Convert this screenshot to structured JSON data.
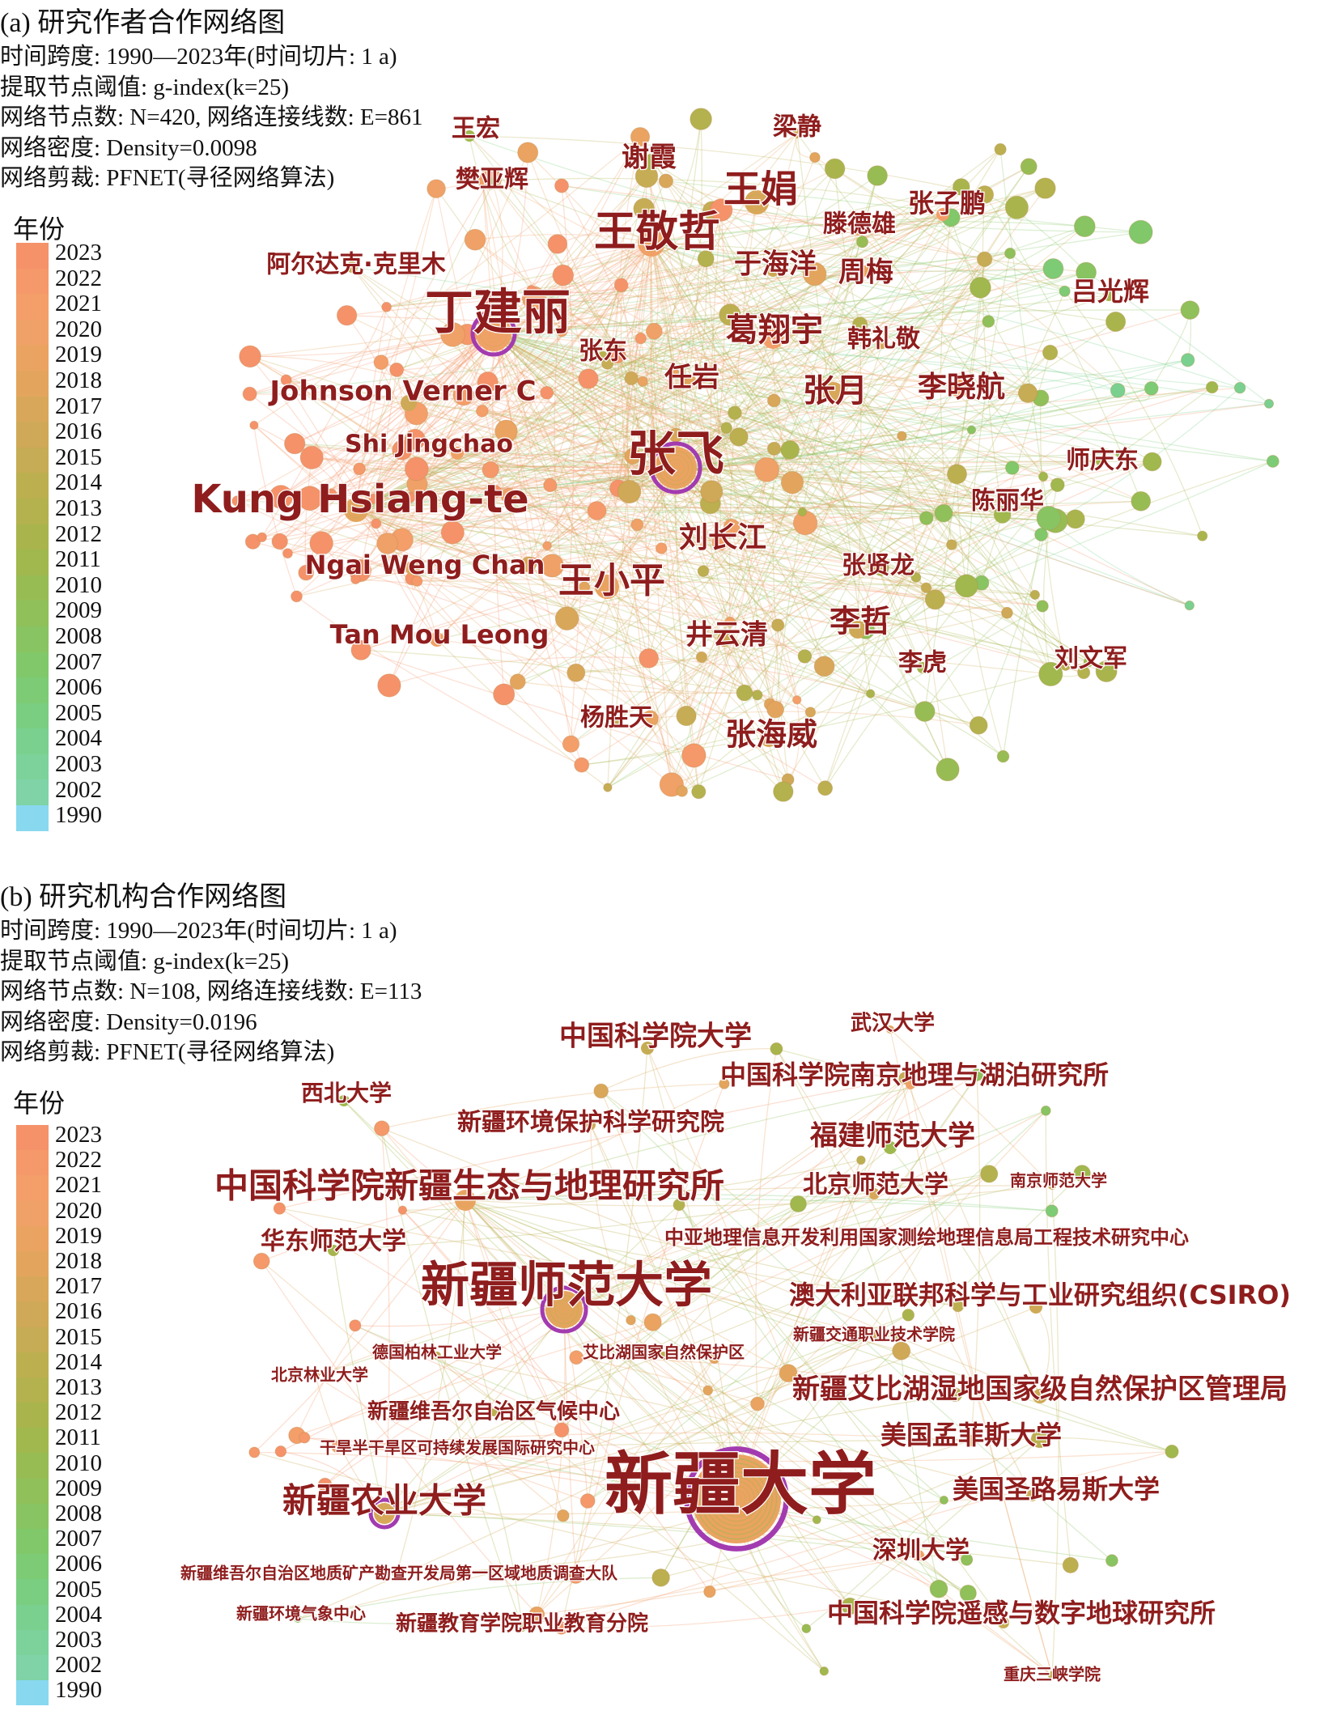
{
  "colors": {
    "label": "#8f1d1d",
    "burst_ring": "#a33bb0",
    "legend_gradient": [
      "#f5926a",
      "#f4a06a",
      "#e6a45e",
      "#cfa957",
      "#b9b04f",
      "#a3b74b",
      "#8fc05a",
      "#7ec96c",
      "#79d08a",
      "#7fd3a6",
      "#88d8f0"
    ]
  },
  "panels": [
    {
      "id": "a",
      "title": "(a) 研究作者合作网络图",
      "meta": [
        "时间跨度: 1990—2023年(时间切片: 1 a)",
        "提取节点阈值: g-index(k=25)",
        "网络节点数: N=420, 网络连接线数: E=861",
        "网络密度: Density=0.0098",
        "网络剪裁: PFNET(寻径网络算法)"
      ],
      "legend_title": "年份",
      "legend_years": [
        "2023",
        "2022",
        "2021",
        "2020",
        "2019",
        "2018",
        "2017",
        "2016",
        "2015",
        "2014",
        "2013",
        "2012",
        "2011",
        "2010",
        "2009",
        "2008",
        "2007",
        "2006",
        "2005",
        "2004",
        "2003",
        "2002",
        "1990"
      ],
      "labeled_nodes": [
        {
          "label": "张飞",
          "year": 2019,
          "size": 52,
          "burst": true
        },
        {
          "label": "丁建丽",
          "year": 2020,
          "size": 44,
          "burst": true
        },
        {
          "label": "Kung Hsiang-te",
          "year": 2018,
          "size": 30,
          "burst": false
        },
        {
          "label": "王敬哲",
          "year": 2020,
          "size": 34,
          "burst": false
        },
        {
          "label": "王娟",
          "year": 2017,
          "size": 30,
          "burst": false
        },
        {
          "label": "王小平",
          "year": 2019,
          "size": 30,
          "burst": false
        },
        {
          "label": "葛翔宇",
          "year": 2021,
          "size": 26,
          "burst": false
        },
        {
          "label": "张月",
          "year": 2017,
          "size": 26,
          "burst": false
        },
        {
          "label": "李晓航",
          "year": 2020,
          "size": 22,
          "burst": false
        },
        {
          "label": "Johnson Verner C",
          "year": 2016,
          "size": 20,
          "burst": false
        },
        {
          "label": "Ngai Weng Chan",
          "year": 2018,
          "size": 18,
          "burst": false
        },
        {
          "label": "Tan Mou Leong",
          "year": 2020,
          "size": 18,
          "burst": false
        },
        {
          "label": "Shi Jingchao",
          "year": 2020,
          "size": 16,
          "burst": false
        },
        {
          "label": "谢霞",
          "year": 2012,
          "size": 20,
          "burst": false
        },
        {
          "label": "刘长江",
          "year": 2021,
          "size": 20,
          "burst": false
        },
        {
          "label": "李哲",
          "year": 2016,
          "size": 22,
          "burst": false
        },
        {
          "label": "张海威",
          "year": 2017,
          "size": 22,
          "burst": false
        },
        {
          "label": "井云清",
          "year": 2016,
          "size": 18,
          "burst": false
        },
        {
          "label": "任岩",
          "year": 2018,
          "size": 16,
          "burst": false
        },
        {
          "label": "于海洋",
          "year": 2016,
          "size": 14,
          "burst": false
        },
        {
          "label": "周梅",
          "year": 2019,
          "size": 14,
          "burst": false
        },
        {
          "label": "张子鹏",
          "year": 2021,
          "size": 16,
          "burst": false
        },
        {
          "label": "梁静",
          "year": 2016,
          "size": 12,
          "burst": false
        },
        {
          "label": "滕德雄",
          "year": 2019,
          "size": 12,
          "burst": false
        },
        {
          "label": "吕光辉",
          "year": 2012,
          "size": 14,
          "burst": false
        },
        {
          "label": "阿尔达克·克里木",
          "year": 2015,
          "size": 14,
          "burst": false
        },
        {
          "label": "王宏",
          "year": 2011,
          "size": 14,
          "burst": false
        },
        {
          "label": "樊亚辉",
          "year": 2012,
          "size": 12,
          "burst": false
        },
        {
          "label": "张东",
          "year": 2014,
          "size": 12,
          "burst": false
        },
        {
          "label": "韩礼敬",
          "year": 2017,
          "size": 12,
          "burst": false
        },
        {
          "label": "师庆东",
          "year": 2012,
          "size": 12,
          "burst": false
        },
        {
          "label": "陈丽华",
          "year": 2015,
          "size": 12,
          "burst": false
        },
        {
          "label": "张贤龙",
          "year": 2016,
          "size": 12,
          "burst": false
        },
        {
          "label": "李虎",
          "year": 2012,
          "size": 14,
          "burst": false
        },
        {
          "label": "刘文军",
          "year": 2011,
          "size": 12,
          "burst": false
        },
        {
          "label": "杨胜天",
          "year": 2015,
          "size": 12,
          "burst": false
        }
      ]
    },
    {
      "id": "b",
      "title": "(b) 研究机构合作网络图",
      "meta": [
        "时间跨度: 1990—2023年(时间切片: 1 a)",
        "提取节点阈值: g-index(k=25)",
        "网络节点数: N=108, 网络连接线数: E=113",
        "网络密度: Density=0.0196",
        "网络剪裁: PFNET(寻径网络算法)"
      ],
      "legend_title": "年份",
      "legend_years": [
        "2023",
        "2022",
        "2021",
        "2020",
        "2019",
        "2018",
        "2017",
        "2016",
        "2015",
        "2014",
        "2013",
        "2012",
        "2011",
        "2010",
        "2009",
        "2008",
        "2007",
        "2006",
        "2005",
        "2004",
        "2003",
        "2002",
        "1990"
      ],
      "labeled_nodes": [
        {
          "label": "新疆大学",
          "year": 2019,
          "size": 110,
          "burst": true
        },
        {
          "label": "新疆师范大学",
          "year": 2018,
          "size": 46,
          "burst": true
        },
        {
          "label": "新疆农业大学",
          "year": 2017,
          "size": 26,
          "burst": true
        },
        {
          "label": "中国科学院新疆生态与地理研究所",
          "year": 2019,
          "size": 26,
          "burst": false
        },
        {
          "label": "中国科学院大学",
          "year": 2015,
          "size": 16,
          "burst": false
        },
        {
          "label": "中国科学院南京地理与湖泊研究所",
          "year": 2020,
          "size": 12,
          "burst": false
        },
        {
          "label": "新疆环境保护科学研究院",
          "year": 2016,
          "size": 12,
          "burst": false
        },
        {
          "label": "福建师范大学",
          "year": 2011,
          "size": 16,
          "burst": false
        },
        {
          "label": "北京师范大学",
          "year": 2017,
          "size": 14,
          "burst": false
        },
        {
          "label": "南京师范大学",
          "year": 2016,
          "size": 10,
          "burst": false
        },
        {
          "label": "武汉大学",
          "year": 2018,
          "size": 10,
          "burst": false
        },
        {
          "label": "西北大学",
          "year": 2011,
          "size": 14,
          "burst": false
        },
        {
          "label": "华东师范大学",
          "year": 2012,
          "size": 14,
          "burst": false
        },
        {
          "label": "中亚地理信息开发利用国家测绘地理信息局工程技术研究中心",
          "year": 2015,
          "size": 12,
          "burst": false
        },
        {
          "label": "澳大利亚联邦科学与工业研究组织(CSIRO)",
          "year": 2016,
          "size": 16,
          "burst": false
        },
        {
          "label": "新疆交通职业技术学院",
          "year": 2016,
          "size": 10,
          "burst": false
        },
        {
          "label": "德国柏林工业大学",
          "year": 2015,
          "size": 10,
          "burst": false
        },
        {
          "label": "艾比湖国家自然保护区",
          "year": 2014,
          "size": 10,
          "burst": false
        },
        {
          "label": "北京林业大学",
          "year": 2018,
          "size": 10,
          "burst": false
        },
        {
          "label": "新疆维吾尔自治区气候中心",
          "year": 2014,
          "size": 10,
          "burst": false
        },
        {
          "label": "新疆艾比湖湿地国家级自然保护区管理局",
          "year": 2016,
          "size": 18,
          "burst": false
        },
        {
          "label": "干旱半干旱区可持续发展国际研究中心",
          "year": 2015,
          "size": 10,
          "burst": false
        },
        {
          "label": "美国孟菲斯大学",
          "year": 2016,
          "size": 14,
          "burst": false
        },
        {
          "label": "美国圣路易斯大学",
          "year": 2016,
          "size": 14,
          "burst": false
        },
        {
          "label": "深圳大学",
          "year": 2020,
          "size": 14,
          "burst": false
        },
        {
          "label": "新疆维吾尔自治区地质矿产勘查开发局第一区域地质调查大队",
          "year": 2015,
          "size": 10,
          "burst": false
        },
        {
          "label": "新疆环境气象中心",
          "year": 2008,
          "size": 10,
          "burst": false
        },
        {
          "label": "新疆教育学院职业教育分院",
          "year": 2012,
          "size": 12,
          "burst": false
        },
        {
          "label": "中国科学院遥感与数字地球研究所",
          "year": 2015,
          "size": 14,
          "burst": false
        },
        {
          "label": "重庆三峡学院",
          "year": 2014,
          "size": 10,
          "burst": false
        }
      ]
    }
  ]
}
